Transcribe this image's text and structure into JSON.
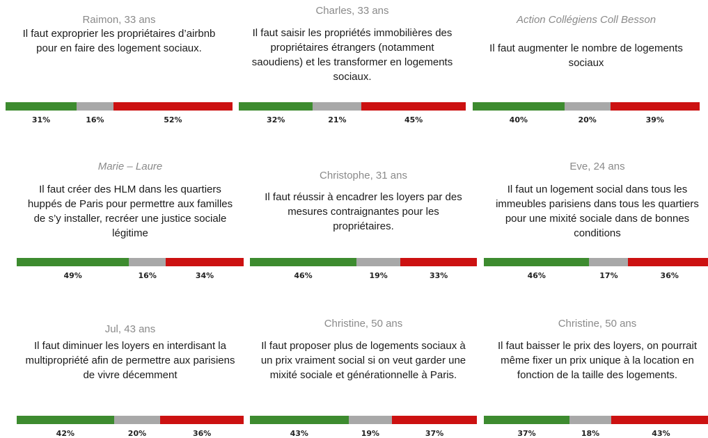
{
  "colors": [
    "#3d8b2f",
    "#a8a8a8",
    "#cc1111"
  ],
  "cards": [
    {
      "author": "Raimon, 33 ans",
      "text": "Il faut exproprier les propriétaires d’airbnb pour en faire des logement sociaux.",
      "values": [
        31,
        16,
        52
      ],
      "value_labels": [
        "31%",
        "16%",
        "52%"
      ]
    },
    {
      "author": "Charles, 33 ans",
      "text": "Il faut saisir les propriétés immobilières des propriétaires étrangers (notamment saoudiens) et les transformer en logements sociaux.",
      "values": [
        32,
        21,
        45
      ],
      "value_labels": [
        "32%",
        "21%",
        "45%"
      ]
    },
    {
      "author": "Action Collégiens Coll Besson",
      "italic": true,
      "text": "Il faut augmenter le nombre de logements sociaux",
      "values": [
        40,
        20,
        39
      ],
      "value_labels": [
        "40%",
        "20%",
        "39%"
      ]
    },
    {
      "author": "Marie – Laure",
      "italic": true,
      "text": "Il faut créer des HLM dans les quartiers huppés de Paris pour permettre aux familles de s’y installer, recréer une justice sociale légitime",
      "values": [
        49,
        16,
        34
      ],
      "value_labels": [
        "49%",
        "16%",
        "34%"
      ]
    },
    {
      "author": "Christophe, 31 ans",
      "text": "Il faut réussir à encadrer les loyers par des mesures contraignantes pour les propriétaires.",
      "values": [
        46,
        19,
        33
      ],
      "value_labels": [
        "46%",
        "19%",
        "33%"
      ]
    },
    {
      "author": "Eve, 24 ans",
      "text": "Il faut un logement social dans tous les immeubles parisiens dans tous les quartiers pour une mixité sociale dans de bonnes conditions",
      "values": [
        46,
        17,
        36
      ],
      "value_labels": [
        "46%",
        "17%",
        "36%"
      ]
    },
    {
      "author": "Jul, 43 ans",
      "text": "Il faut diminuer les loyers en interdisant la multipropriété afin de permettre aux parisiens de vivre décemment",
      "values": [
        42,
        20,
        36
      ],
      "value_labels": [
        "42%",
        "20%",
        "36%"
      ]
    },
    {
      "author": "Christine, 50 ans",
      "text": "Il faut proposer plus de logements sociaux à un prix vraiment social si on veut garder une mixité sociale et générationnelle à Paris.",
      "values": [
        43,
        19,
        37
      ],
      "value_labels": [
        "43%",
        "19%",
        "37%"
      ]
    },
    {
      "author": "Christine, 50 ans",
      "text": "Il faut baisser le prix des loyers, on pourrait même fixer un prix unique à la location en fonction de la taille des logements.",
      "values": [
        37,
        18,
        43
      ],
      "value_labels": [
        "37%",
        "18%",
        "43%"
      ]
    }
  ]
}
